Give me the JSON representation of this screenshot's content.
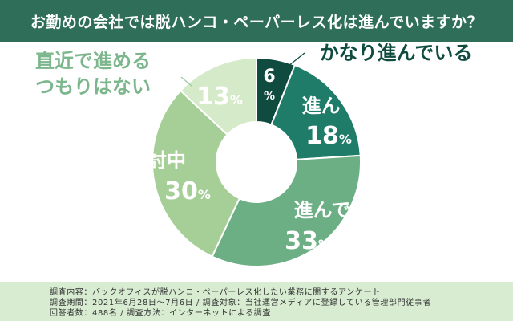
{
  "title": "お勤めの会社では脱ハンコ・ペーパーレス化は進んでいますか？",
  "chart_data": {
    "type": "pie",
    "donut": true,
    "slices": [
      {
        "label": "かなり進んでいる",
        "value": 6,
        "value_text": "6",
        "color": "#0f4b3f",
        "label_color": "#0f4b3f"
      },
      {
        "label": "進んでいる",
        "value": 18,
        "value_text": "18",
        "color": "#1f7c68",
        "label_color": "#ffffff"
      },
      {
        "label": "進んでいない",
        "value": 33,
        "value_text": "33",
        "color": "#6daf84",
        "label_color": "#ffffff"
      },
      {
        "label": "取り組み検討中",
        "value": 30,
        "value_text": "30",
        "color": "#a6cf97",
        "label_color": "#ffffff"
      },
      {
        "label": "直近で進める\nつもりはない",
        "value": 13,
        "value_text": "13",
        "color": "#d4eac8",
        "label_color": "#7cb68c"
      }
    ],
    "unit": "%"
  },
  "footer": {
    "line1": "調査内容：バックオフィスが脱ハンコ・ペーパーレス化したい業務に関するアンケート",
    "line2": "調査期間：2021年6月28日〜7月6日 / 調査対象：当社運営メディアに登録している管理部門従事者",
    "line3": "回答者数：488名 / 調査方法：インターネットによる調査"
  }
}
